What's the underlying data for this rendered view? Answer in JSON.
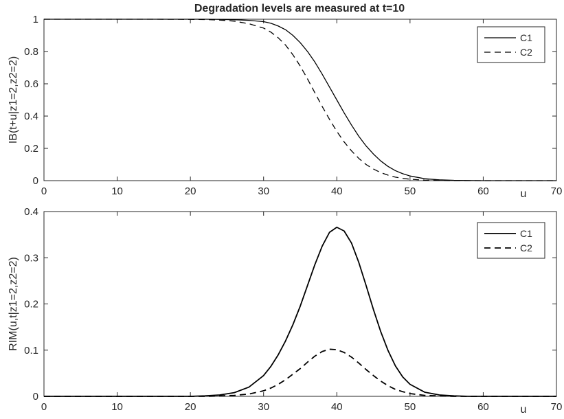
{
  "figure_title": "Degradation levels are measured at t=10",
  "colors": {
    "line": "#000000",
    "axis": "#262626",
    "background": "#ffffff"
  },
  "chart_data": [
    {
      "type": "line",
      "title": "Degradation levels are measured at t=10",
      "xlabel": "u",
      "ylabel": "IB(t+u|z1=2,z2=2)",
      "xlim": [
        0,
        70
      ],
      "ylim": [
        0,
        1
      ],
      "xticks": [
        0,
        10,
        20,
        30,
        40,
        50,
        60,
        70
      ],
      "yticks": [
        0,
        0.2,
        0.4,
        0.6,
        0.8,
        1
      ],
      "x_tick_labels": [
        "0",
        "10",
        "20",
        "30",
        "40",
        "50",
        "60",
        "70"
      ],
      "y_tick_labels": [
        "0",
        "0.2",
        "0.4",
        "0.6",
        "0.8",
        "1"
      ],
      "grid": false,
      "legend_position": "top-right",
      "x": [
        0,
        5,
        10,
        15,
        20,
        22,
        24,
        26,
        28,
        30,
        31,
        32,
        33,
        34,
        35,
        36,
        37,
        38,
        39,
        40,
        41,
        42,
        43,
        44,
        45,
        46,
        47,
        48,
        49,
        50,
        52,
        54,
        56,
        58,
        60,
        65,
        70
      ],
      "series": [
        {
          "name": "C1",
          "style": "solid",
          "values": [
            1,
            1,
            1,
            1,
            1,
            1,
            0.999,
            0.997,
            0.993,
            0.985,
            0.975,
            0.958,
            0.935,
            0.9,
            0.855,
            0.8,
            0.735,
            0.66,
            0.58,
            0.5,
            0.42,
            0.345,
            0.275,
            0.215,
            0.165,
            0.122,
            0.088,
            0.062,
            0.043,
            0.029,
            0.012,
            0.005,
            0.002,
            0.001,
            0,
            0,
            0
          ]
        },
        {
          "name": "C2",
          "style": "dashed",
          "values": [
            1,
            1,
            1,
            1,
            0.999,
            0.998,
            0.995,
            0.988,
            0.972,
            0.945,
            0.92,
            0.885,
            0.84,
            0.78,
            0.71,
            0.63,
            0.545,
            0.46,
            0.38,
            0.305,
            0.24,
            0.185,
            0.138,
            0.1,
            0.072,
            0.05,
            0.034,
            0.022,
            0.014,
            0.009,
            0.003,
            0.001,
            0,
            0,
            0,
            0,
            0
          ]
        }
      ]
    },
    {
      "type": "line",
      "title": "",
      "xlabel": "u",
      "ylabel": "RIM(u,t|z1=2,z2=2)",
      "xlim": [
        0,
        70
      ],
      "ylim": [
        0,
        0.4
      ],
      "xticks": [
        0,
        10,
        20,
        30,
        40,
        50,
        60,
        70
      ],
      "yticks": [
        0,
        0.1,
        0.2,
        0.3,
        0.4
      ],
      "x_tick_labels": [
        "0",
        "10",
        "20",
        "30",
        "40",
        "50",
        "60",
        "70"
      ],
      "y_tick_labels": [
        "0",
        "0.1",
        "0.2",
        "0.3",
        "0.4"
      ],
      "grid": false,
      "legend_position": "top-right",
      "x": [
        0,
        5,
        10,
        15,
        20,
        22,
        24,
        26,
        28,
        30,
        31,
        32,
        33,
        34,
        35,
        36,
        37,
        38,
        39,
        40,
        41,
        42,
        43,
        44,
        45,
        46,
        47,
        48,
        49,
        50,
        52,
        54,
        56,
        58,
        60,
        65,
        70
      ],
      "series": [
        {
          "name": "C1",
          "style": "solid",
          "values": [
            0,
            0,
            0,
            0,
            0,
            0.001,
            0.003,
            0.008,
            0.02,
            0.045,
            0.065,
            0.09,
            0.12,
            0.155,
            0.195,
            0.24,
            0.285,
            0.325,
            0.355,
            0.366,
            0.358,
            0.332,
            0.29,
            0.24,
            0.188,
            0.14,
            0.099,
            0.066,
            0.042,
            0.026,
            0.009,
            0.003,
            0.001,
            0,
            0,
            0,
            0
          ]
        },
        {
          "name": "C2",
          "style": "dashed",
          "values": [
            0,
            0,
            0,
            0,
            0,
            0,
            0.001,
            0.002,
            0.005,
            0.012,
            0.018,
            0.026,
            0.036,
            0.048,
            0.06,
            0.074,
            0.087,
            0.097,
            0.102,
            0.101,
            0.095,
            0.085,
            0.072,
            0.058,
            0.045,
            0.033,
            0.023,
            0.015,
            0.01,
            0.006,
            0.002,
            0.001,
            0,
            0,
            0,
            0,
            0
          ]
        }
      ]
    }
  ]
}
